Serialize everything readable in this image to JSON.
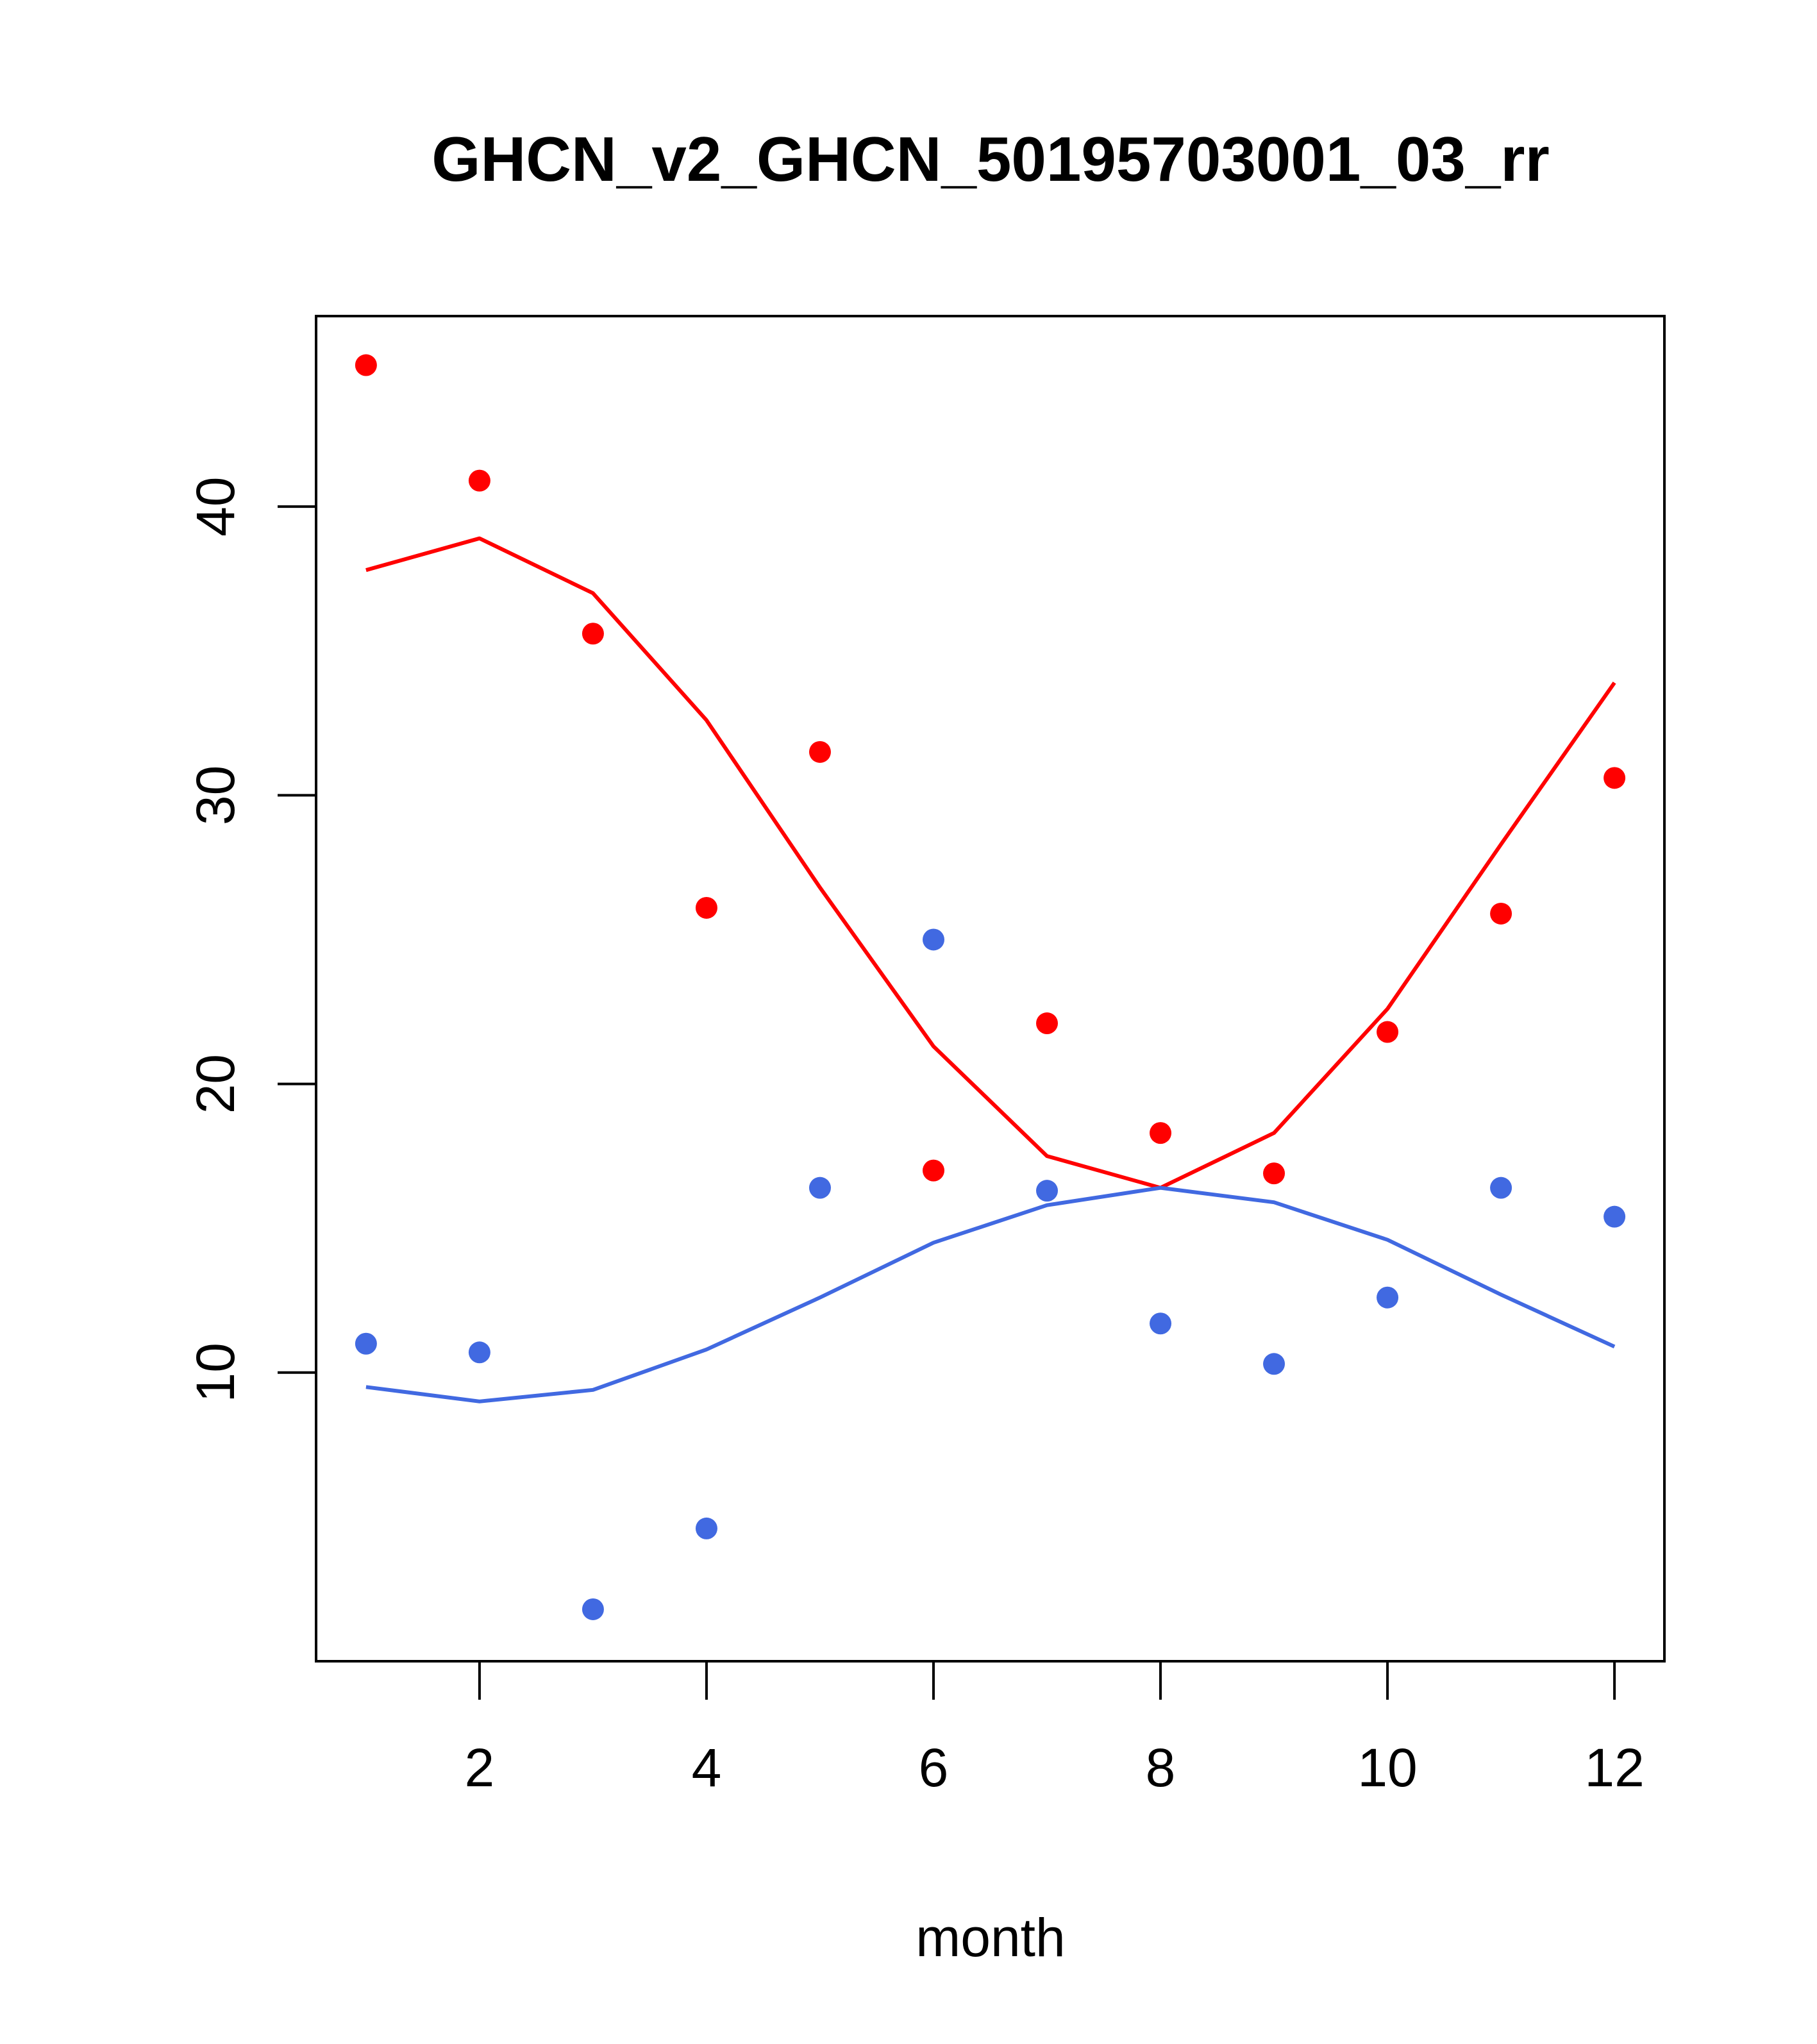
{
  "chart_data": {
    "type": "scatter",
    "title": "GHCN_v2_GHCN_50195703001_03_rr",
    "xlabel": "month",
    "ylabel": "",
    "xlim": [
      0.56,
      12.44
    ],
    "ylim": [
      0.0,
      46.6
    ],
    "x_ticks": [
      2,
      4,
      6,
      8,
      10,
      12
    ],
    "y_ticks": [
      10,
      20,
      30,
      40
    ],
    "grid": false,
    "legend": "none",
    "series": [
      {
        "color": "#ff0000",
        "points_x": [
          1,
          2,
          3,
          4,
          5,
          6,
          7,
          8,
          9,
          10,
          11,
          12
        ],
        "points_y": [
          44.9,
          40.9,
          35.6,
          26.1,
          31.5,
          17.0,
          22.1,
          18.3,
          16.9,
          21.8,
          25.9,
          30.6
        ],
        "line_x": [
          1,
          2,
          3,
          4,
          5,
          6,
          7,
          8,
          9,
          10,
          11,
          12
        ],
        "line_y": [
          37.8,
          38.9,
          37.0,
          32.6,
          26.8,
          21.3,
          17.5,
          16.4,
          18.3,
          22.6,
          28.3,
          33.9
        ]
      },
      {
        "color": "#4169e1",
        "points_x": [
          1,
          2,
          3,
          4,
          5,
          6,
          7,
          8,
          9,
          10,
          11,
          12
        ],
        "points_y": [
          11.0,
          10.7,
          1.8,
          4.6,
          16.4,
          25.0,
          16.3,
          11.7,
          10.3,
          12.6,
          16.4,
          15.4
        ],
        "line_x": [
          1,
          2,
          3,
          4,
          5,
          6,
          7,
          8,
          9,
          10,
          11,
          12
        ],
        "line_y": [
          9.5,
          9.0,
          9.4,
          10.8,
          12.6,
          14.5,
          15.8,
          16.4,
          15.9,
          14.6,
          12.7,
          10.9
        ]
      }
    ]
  }
}
